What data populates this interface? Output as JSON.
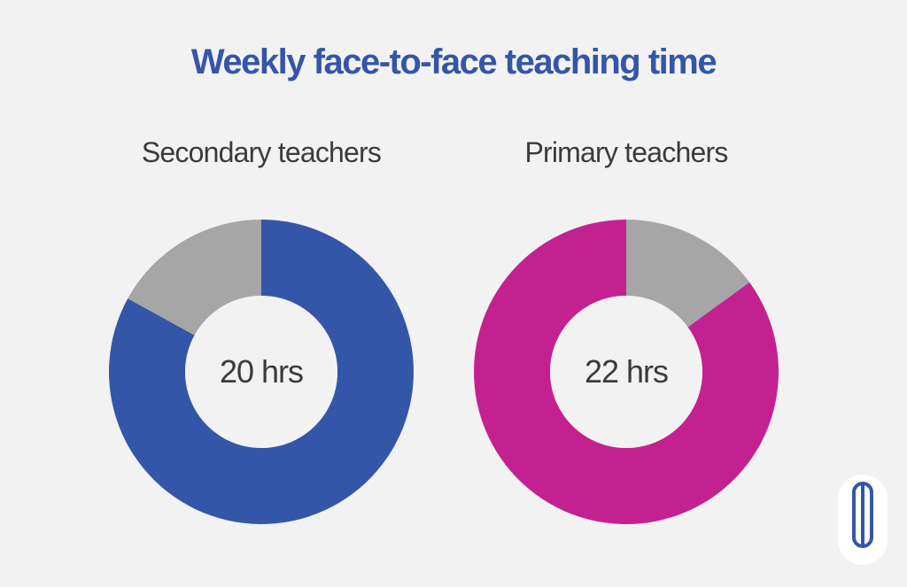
{
  "title": "Weekly face-to-face teaching time",
  "colors": {
    "background": "#f2f2f2",
    "title": "#3456a8",
    "remainder": "#a6a6a6",
    "center": "#f2f2f2",
    "logo": "#3456a8"
  },
  "chart_data": [
    {
      "type": "pie",
      "title": "Secondary teachers",
      "center_label": "20 hrs",
      "slices": [
        {
          "value": 0.83,
          "color": "#3456a8"
        },
        {
          "value": 0.17,
          "color": "#a6a6a6"
        }
      ]
    },
    {
      "type": "pie",
      "title": "Primary teachers",
      "center_label": "22 hrs",
      "slices": [
        {
          "value": 0.85,
          "color": "#c42190"
        },
        {
          "value": 0.15,
          "color": "#a6a6a6"
        }
      ]
    }
  ],
  "logo": {
    "icon": "brand-logo-icon"
  }
}
